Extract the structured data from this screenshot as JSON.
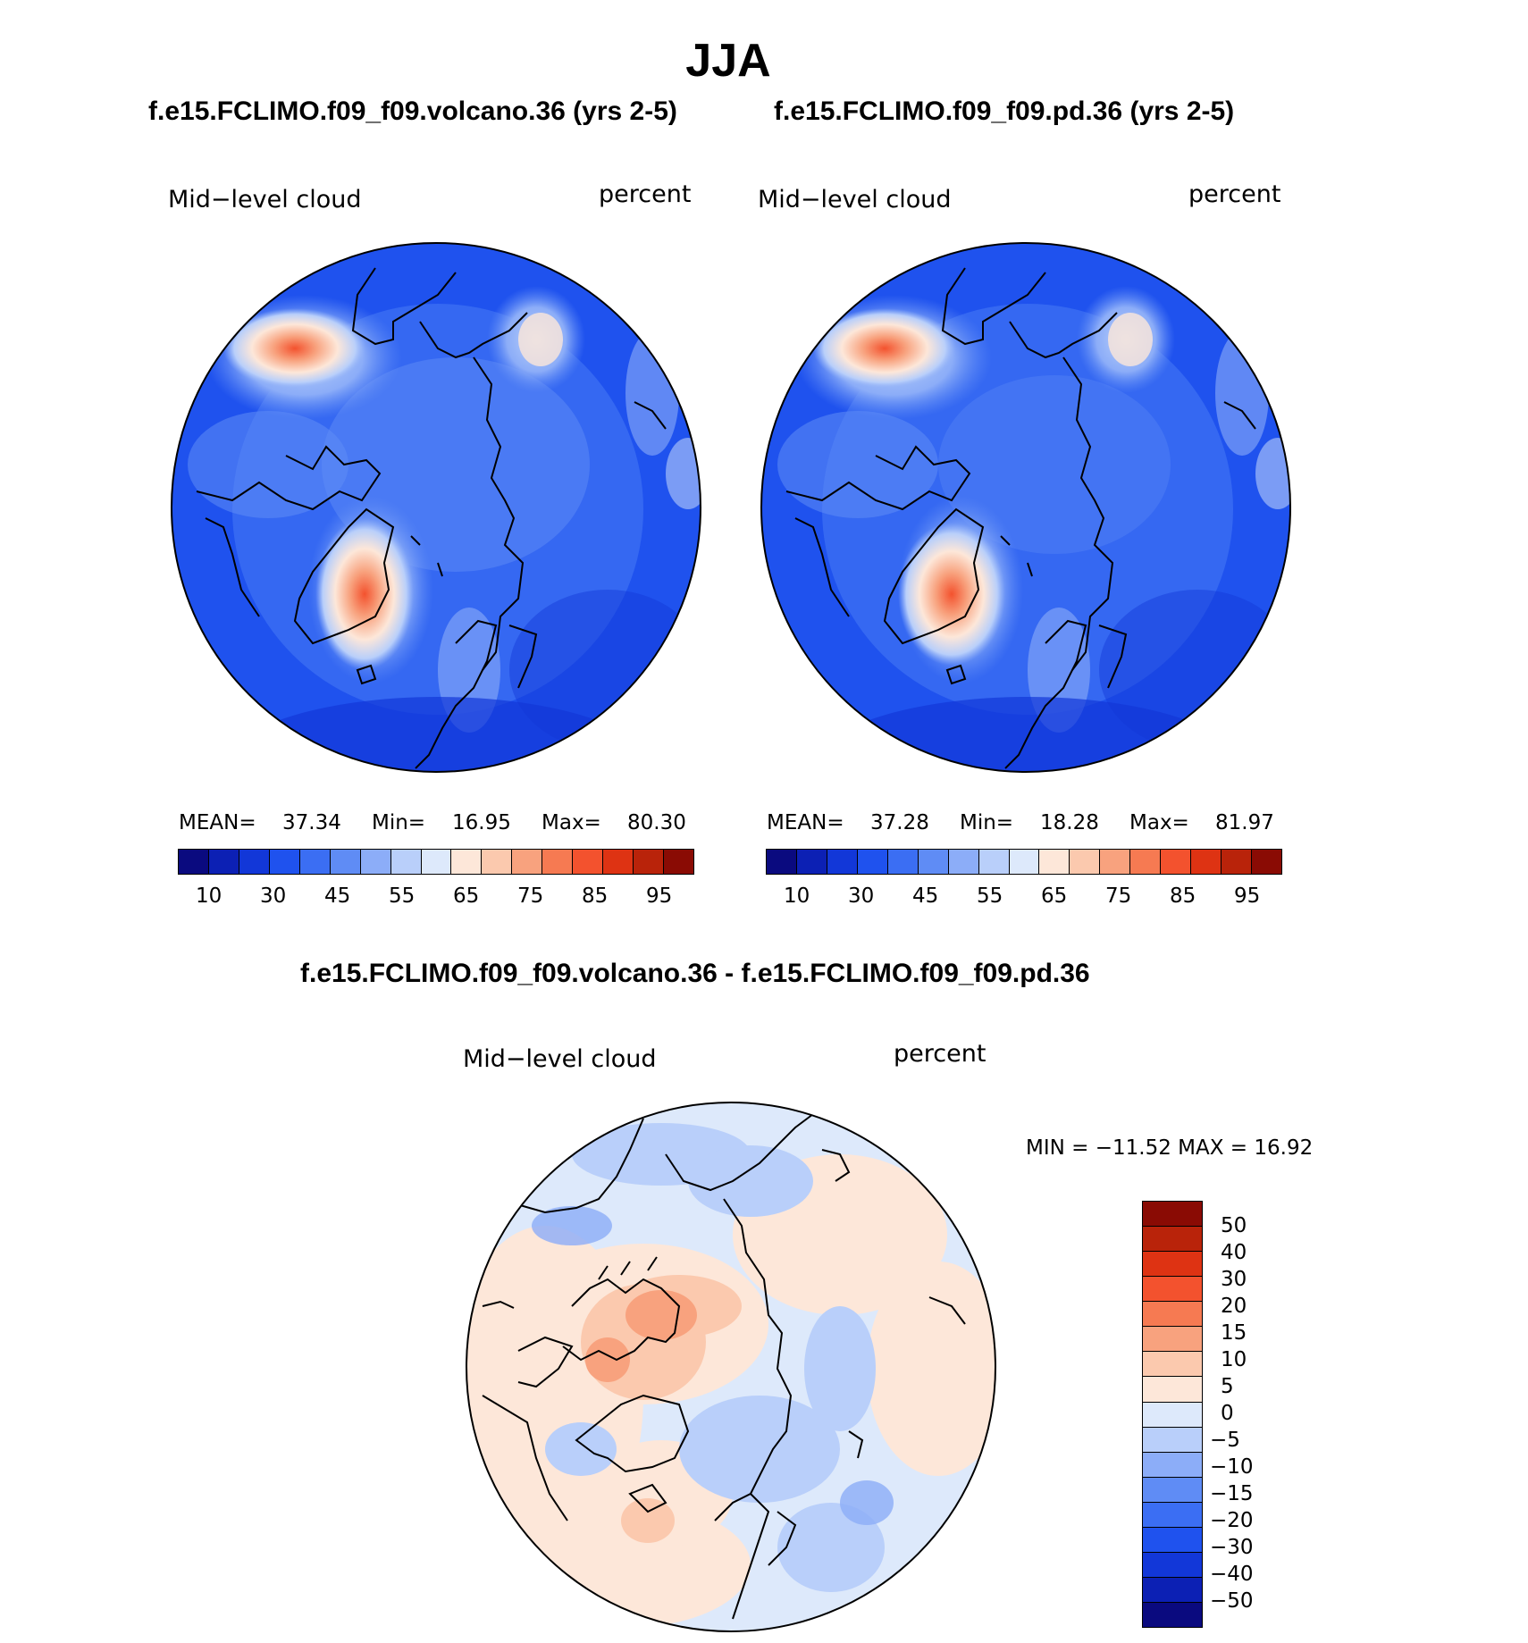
{
  "season_title": "JJA",
  "panels": {
    "volcano": {
      "case_title": "f.e15.FCLIMO.f09_f09.volcano.36 (yrs 2-5)",
      "variable": "Mid−level cloud",
      "units": "percent",
      "mean_label": "MEAN=",
      "mean": "37.34",
      "min_label": "Min=",
      "min": "16.95",
      "max_label": "Max=",
      "max": "80.30"
    },
    "pd": {
      "case_title": "f.e15.FCLIMO.f09_f09.pd.36 (yrs 2-5)",
      "variable": "Mid−level cloud",
      "units": "percent",
      "mean_label": "MEAN=",
      "mean": "37.28",
      "min_label": "Min=",
      "min": "18.28",
      "max_label": "Max=",
      "max": "81.97"
    },
    "diff": {
      "case_title": "f.e15.FCLIMO.f09_f09.volcano.36 - f.e15.FCLIMO.f09_f09.pd.36",
      "variable": "Mid−level cloud",
      "units": "percent",
      "minmax_text": "MIN = −11.52 MAX =   16.92"
    }
  },
  "colorbar_abs": {
    "colors": [
      "#0a0a7f",
      "#0c20b4",
      "#1237d8",
      "#1f52ee",
      "#3b6ef3",
      "#5f8cf5",
      "#8cadf8",
      "#b9cffa",
      "#dde9fb",
      "#fde7d9",
      "#fbc9ae",
      "#f8a27e",
      "#f67a52",
      "#f3522e",
      "#de3313",
      "#b9230a",
      "#8a0b04"
    ],
    "tick_labels": [
      "10",
      "30",
      "45",
      "55",
      "65",
      "75",
      "85",
      "95"
    ]
  },
  "colorbar_diff": {
    "colors": [
      "#8a0b04",
      "#b9230a",
      "#de3313",
      "#f3522e",
      "#f67a52",
      "#f8a27e",
      "#fbc9ae",
      "#fde7d9",
      "#dde9fb",
      "#b9cffa",
      "#8cadf8",
      "#5f8cf5",
      "#3b6ef3",
      "#1f52ee",
      "#1237d8",
      "#0c20b4",
      "#0a0a7f"
    ],
    "tick_labels": [
      "50",
      "40",
      "30",
      "20",
      "15",
      "10",
      "5",
      "0",
      "−5",
      "−10",
      "−15",
      "−20",
      "−30",
      "−40",
      "−50"
    ]
  },
  "chart_data": [
    {
      "type": "heatmap",
      "projection": "north-polar-stereographic",
      "title": "f.e15.FCLIMO.f09_f09.volcano.36 (yrs 2-5)",
      "variable": "Mid-level cloud",
      "units": "percent",
      "stats": {
        "mean": 37.34,
        "min": 16.95,
        "max": 80.3
      },
      "contour_levels": [
        5,
        10,
        15,
        20,
        25,
        30,
        35,
        40,
        45,
        50,
        55,
        60,
        65,
        70,
        75,
        80,
        85,
        90,
        95
      ],
      "colorbar_ticks": [
        10,
        30,
        45,
        55,
        65,
        75,
        85,
        95
      ]
    },
    {
      "type": "heatmap",
      "projection": "north-polar-stereographic",
      "title": "f.e15.FCLIMO.f09_f09.pd.36 (yrs 2-5)",
      "variable": "Mid-level cloud",
      "units": "percent",
      "stats": {
        "mean": 37.28,
        "min": 18.28,
        "max": 81.97
      },
      "contour_levels": [
        5,
        10,
        15,
        20,
        25,
        30,
        35,
        40,
        45,
        50,
        55,
        60,
        65,
        70,
        75,
        80,
        85,
        90,
        95
      ],
      "colorbar_ticks": [
        10,
        30,
        45,
        55,
        65,
        75,
        85,
        95
      ]
    },
    {
      "type": "heatmap",
      "projection": "north-polar-stereographic",
      "title": "f.e15.FCLIMO.f09_f09.volcano.36 - f.e15.FCLIMO.f09_f09.pd.36",
      "variable": "Mid-level cloud",
      "units": "percent",
      "stats": {
        "min": -11.52,
        "max": 16.92
      },
      "colorbar_ticks": [
        50,
        40,
        30,
        20,
        15,
        10,
        5,
        0,
        -5,
        -10,
        -15,
        -20,
        -30,
        -40,
        -50
      ]
    }
  ]
}
